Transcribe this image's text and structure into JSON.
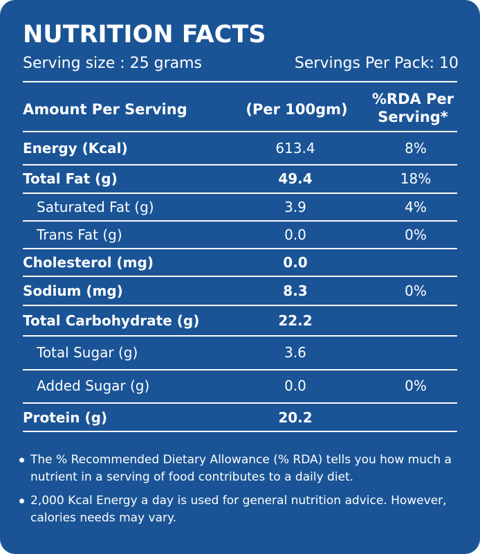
{
  "label": {
    "title": "NUTRITION FACTS",
    "serving_size": "Serving size : 25 grams",
    "servings_per_pack": "Servings Per Pack: 10"
  },
  "table": {
    "headers": {
      "amount": "Amount Per Serving",
      "per100": "(Per 100gm)",
      "rda": "%RDA Per Serving*"
    },
    "rows": [
      {
        "name": "Energy (Kcal)",
        "value": "613.4",
        "rda": "8%"
      },
      {
        "name": "Total Fat (g)",
        "value": "49.4",
        "rda": "18%"
      },
      {
        "name": "Saturated Fat (g)",
        "value": "3.9",
        "rda": "4%"
      },
      {
        "name": "Trans Fat (g)",
        "value": "0.0",
        "rda": "0%"
      },
      {
        "name": "Cholesterol (mg)",
        "value": "0.0",
        "rda": ""
      },
      {
        "name": "Sodium  (mg)",
        "value": "8.3",
        "rda": "0%"
      },
      {
        "name": "Total Carbohydrate (g)",
        "value": "22.2",
        "rda": ""
      },
      {
        "name": "Total Sugar (g)",
        "value": "3.6",
        "rda": ""
      },
      {
        "name": "Added Sugar (g)",
        "value": "0.0",
        "rda": "0%"
      },
      {
        "name": "Protein (g)",
        "value": "20.2",
        "rda": ""
      }
    ]
  },
  "footnotes": [
    "The % Recommended Dietary Allowance (% RDA) tells you how much a nutrient in a serving of food contributes to a daily diet.",
    "2,000 Kcal Energy a day is used for general nutrition advice. However, calories needs may vary."
  ],
  "colors": {
    "background": "#1a5496",
    "text": "#ffffff"
  }
}
